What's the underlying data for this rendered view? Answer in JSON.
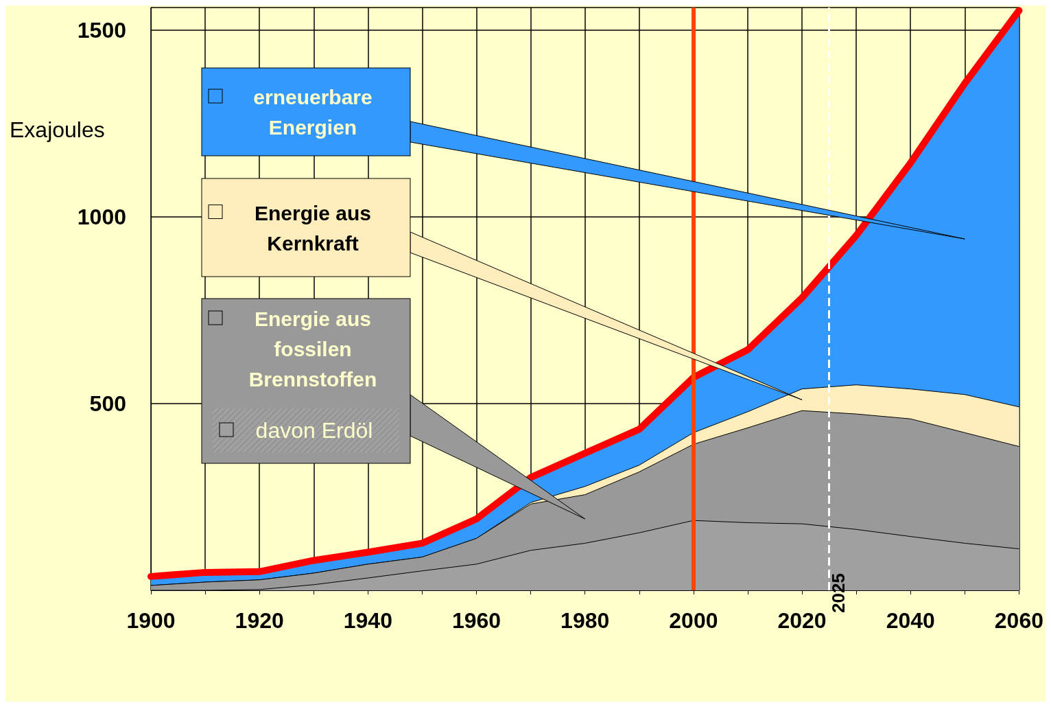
{
  "chart_data": {
    "type": "area",
    "stacked": true,
    "ylabel": "Exajoules",
    "x": [
      1900,
      1910,
      1920,
      1930,
      1940,
      1950,
      1960,
      1970,
      1980,
      1990,
      2000,
      2010,
      2020,
      2030,
      2040,
      2050,
      2060
    ],
    "series": [
      {
        "name": "davon Erdöl",
        "color": "#a0a0a0",
        "values": [
          0,
          0,
          2,
          15,
          33,
          52,
          70,
          107,
          126,
          154,
          187,
          181,
          178,
          163,
          144,
          126,
          111
        ]
      },
      {
        "name": "Energie aus fossilen Brennstoffen",
        "color": "#999999",
        "values": [
          13,
          22,
          26,
          31,
          37,
          37,
          69,
          124,
          130,
          163,
          204,
          254,
          303,
          309,
          315,
          296,
          274
        ]
      },
      {
        "name": "Energie aus Kernkraft",
        "color": "#ffeebb",
        "values": [
          0,
          0,
          0,
          0,
          0,
          0,
          0,
          4,
          22,
          18,
          31,
          43,
          58,
          78,
          80,
          102,
          106
        ]
      },
      {
        "name": "erneuerbare Energien",
        "color": "#3399ff",
        "values": [
          24,
          26,
          22,
          34,
          32,
          37,
          52,
          67,
          89,
          96,
          148,
          166,
          244,
          400,
          605,
          833,
          1061
        ]
      },
      {
        "type": "line",
        "color": "#ff0000",
        "values": [
          37,
          48,
          50,
          80,
          102,
          126,
          191,
          302,
          367,
          431,
          570,
          644,
          783,
          950,
          1144,
          1357,
          1552
        ]
      }
    ],
    "xlim": [
      1900,
      2060
    ],
    "xticks": [
      1900,
      {
        "value": 1910,
        "label": null
      },
      1920,
      {
        "value": 1930,
        "label": null
      },
      1940,
      {
        "value": 1950,
        "label": null
      },
      1960,
      {
        "value": 1970,
        "label": null
      },
      1980,
      {
        "value": 1990,
        "label": null
      },
      2000,
      {
        "value": 2010,
        "label": null
      },
      2020,
      {
        "value": 2030,
        "label": null
      },
      2040,
      {
        "value": 2050,
        "label": null
      },
      2060
    ],
    "ylim": [
      0,
      1560
    ],
    "yticks": [
      500,
      1000,
      1500
    ],
    "grid": true,
    "legend": "top left",
    "ref_lines": [
      {
        "axis": "x",
        "value": 2000,
        "color": "#ff4400"
      },
      {
        "axis": "x",
        "value": 2025,
        "label": "2025",
        "line_style": "dashed",
        "color": "#ffffff"
      }
    ]
  }
}
